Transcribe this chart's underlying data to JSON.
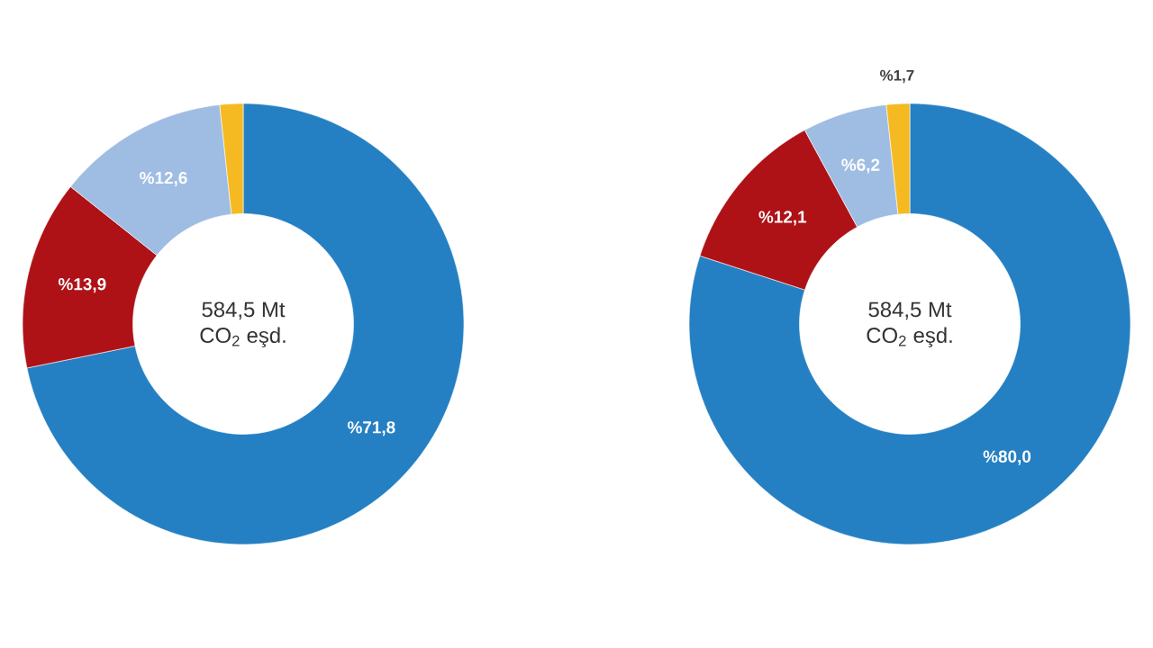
{
  "chart_data": [
    {
      "type": "donut",
      "categories": [
        null,
        null,
        null,
        null
      ],
      "values": [
        71.8,
        13.9,
        12.6,
        1.7
      ],
      "colors": [
        "#2580c3",
        "#ae1217",
        "#9fbde3",
        "#f5b921"
      ],
      "value_labels": [
        "%71,8",
        "%13,9",
        "%12,6",
        null
      ],
      "annotations": [
        "584,5 Mt",
        "CO$_{2}$ eşd."
      ]
    },
    {
      "type": "donut",
      "categories": [
        null,
        null,
        null,
        null
      ],
      "values": [
        80.0,
        12.1,
        6.2,
        1.7
      ],
      "colors": [
        "#2580c3",
        "#ae1217",
        "#9fbde3",
        "#f5b921"
      ],
      "value_labels": [
        "%80,0",
        "%12,1",
        "%6,2",
        "%1,7"
      ],
      "annotations": [
        "584,5 Mt",
        "CO$_{2}$ eşd."
      ]
    }
  ]
}
